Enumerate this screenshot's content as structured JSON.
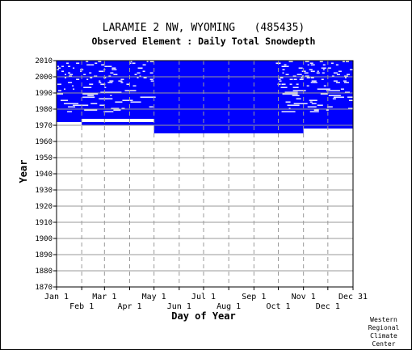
{
  "chart_data": {
    "type": "heatmap",
    "title": "LARAMIE 2 NW, WYOMING   (485435)",
    "subtitle": "Observed Element : Daily Total Snowdepth",
    "xlabel": "Day of Year",
    "ylabel": "Year",
    "ylim": [
      1870,
      2010
    ],
    "y_ticks": [
      1870,
      1880,
      1890,
      1900,
      1910,
      1920,
      1930,
      1940,
      1950,
      1960,
      1970,
      1980,
      1990,
      2000,
      2010
    ],
    "x_ticks_upper": [
      "Jan 1",
      "Mar 1",
      "May 1",
      "Jul 1",
      "Sep 1",
      "Nov 1",
      "Dec 31"
    ],
    "x_ticks_lower": [
      "Feb 1",
      "Apr 1",
      "Jun 1",
      "Aug 1",
      "Oct 1",
      "Dec 1"
    ],
    "grid": true,
    "color": "#0000ff",
    "observed_years": [
      1965,
      2010
    ],
    "missing_gaps": [
      {
        "year_from": 1965,
        "year_to": 1970,
        "days": "Jan 1 - Apr 30"
      },
      {
        "year_from": 1970,
        "year_to": 1972,
        "days": "Jan 1 - Jan 31"
      },
      {
        "year_from": 1972,
        "year_to": 1974,
        "days": "Feb 1 - Apr 30"
      },
      {
        "year_from": 1965,
        "year_to": 1968,
        "days": "Nov 1 - Dec 31"
      }
    ]
  },
  "credit": [
    "Western",
    "Regional",
    "Climate",
    "Center"
  ]
}
